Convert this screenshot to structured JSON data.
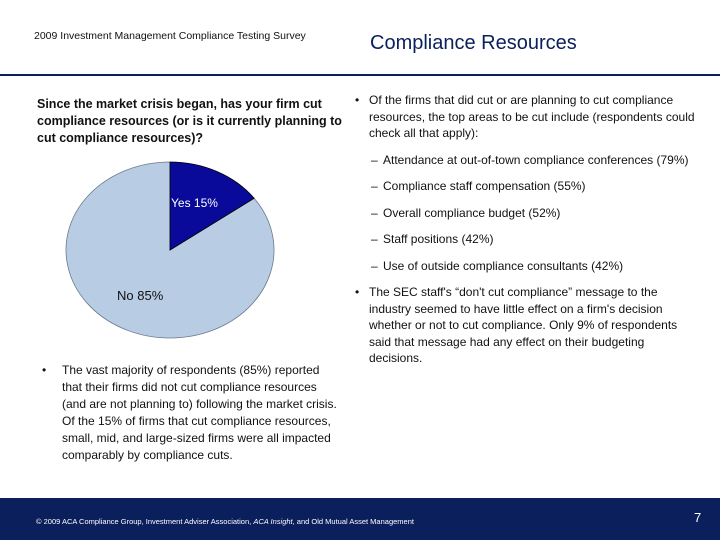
{
  "header": {
    "survey_title": "2009 Investment Management Compliance Testing Survey",
    "slide_title": "Compliance Resources"
  },
  "question": "Since the market crisis began, has your firm cut compliance resources (or is it currently planning to cut compliance resources)?",
  "chart_data": {
    "type": "pie",
    "title": "",
    "slices": [
      {
        "label": "Yes",
        "value": 15,
        "display": "Yes  15%",
        "color": "#0a0a9a"
      },
      {
        "label": "No",
        "value": 85,
        "display": "No  85%",
        "color": "#b8cce4"
      }
    ]
  },
  "left_bullet": {
    "marker": "•",
    "text": "The vast majority of respondents (85%) reported that their firms did not cut compliance resources (and are not planning to) following the market crisis.  Of the 15% of firms that cut compliance resources, small, mid, and large-sized firms were all impacted comparably by compliance cuts."
  },
  "right": {
    "marker": "•",
    "sub_marker": "–",
    "intro": "Of the firms that did cut or are planning to cut compliance resources, the top areas to be cut include (respondents could check all that apply):",
    "items": [
      "Attendance at out-of-town compliance conferences (79%)",
      "Compliance staff compensation (55%)",
      "Overall compliance budget (52%)",
      "Staff positions (42%)",
      "Use of outside compliance consultants (42%)"
    ],
    "conclusion": "The SEC staff's “don't cut compliance” message to the industry seemed to have little effect on a firm's decision whether or not to cut compliance.  Only 9% of respondents said that message had any effect on their budgeting decisions."
  },
  "footer": {
    "copyright_prefix": "© 2009 ACA Compliance Group, Investment Adviser Association, ",
    "copyright_italic": "ACA Insight",
    "copyright_suffix": ", and Old Mutual Asset Management",
    "page_number": "7"
  }
}
